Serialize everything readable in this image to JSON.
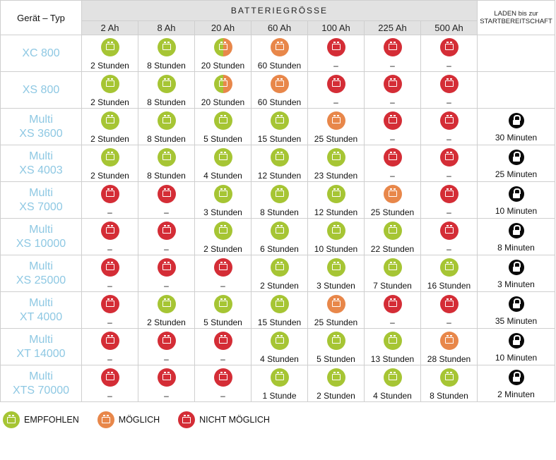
{
  "header": {
    "corner": "Gerät – Typ",
    "battery_size": "BATTERIEGRÖSSE",
    "ready": "LADEN bis zur STARTBEREITSCHAFT",
    "capacities": [
      "2 Ah",
      "8 Ah",
      "20 Ah",
      "60 Ah",
      "100 Ah",
      "225 Ah",
      "500 Ah"
    ]
  },
  "rows": [
    {
      "line1": "XC 800",
      "line2": "",
      "cells": [
        {
          "s": "ok",
          "t": "2 Stunden"
        },
        {
          "s": "ok",
          "t": "8 Stunden"
        },
        {
          "s": "split",
          "t": "20 Stunden"
        },
        {
          "s": "poss",
          "t": "60 Stunden"
        },
        {
          "s": "no",
          "t": "–"
        },
        {
          "s": "no",
          "t": "–"
        },
        {
          "s": "no",
          "t": "–"
        }
      ],
      "ready": ""
    },
    {
      "line1": "XS 800",
      "line2": "",
      "cells": [
        {
          "s": "ok",
          "t": "2 Stunden"
        },
        {
          "s": "ok",
          "t": "8 Stunden"
        },
        {
          "s": "split",
          "t": "20 Stunden"
        },
        {
          "s": "poss",
          "t": "60 Stunden"
        },
        {
          "s": "no",
          "t": "–"
        },
        {
          "s": "no",
          "t": "–"
        },
        {
          "s": "no",
          "t": "–"
        }
      ],
      "ready": ""
    },
    {
      "line1": "Multi",
      "line2": "XS 3600",
      "cells": [
        {
          "s": "ok",
          "t": "2 Stunden"
        },
        {
          "s": "ok",
          "t": "8 Stunden"
        },
        {
          "s": "ok",
          "t": "5 Stunden"
        },
        {
          "s": "ok",
          "t": "15 Stunden"
        },
        {
          "s": "poss",
          "t": "25 Stunden"
        },
        {
          "s": "no",
          "t": "–"
        },
        {
          "s": "no",
          "t": "–"
        }
      ],
      "ready": "30 Minuten"
    },
    {
      "line1": "Multi",
      "line2": "XS 4003",
      "cells": [
        {
          "s": "ok",
          "t": "2 Stunden"
        },
        {
          "s": "ok",
          "t": "8 Stunden"
        },
        {
          "s": "ok",
          "t": "4 Stunden"
        },
        {
          "s": "ok",
          "t": "12 Stunden"
        },
        {
          "s": "ok",
          "t": "23 Stunden"
        },
        {
          "s": "no",
          "t": "–"
        },
        {
          "s": "no",
          "t": "–"
        }
      ],
      "ready": "25 Minuten"
    },
    {
      "line1": "Multi",
      "line2": "XS 7000",
      "cells": [
        {
          "s": "no",
          "t": "–"
        },
        {
          "s": "no",
          "t": "–"
        },
        {
          "s": "ok",
          "t": "3 Stunden"
        },
        {
          "s": "ok",
          "t": "8 Stunden"
        },
        {
          "s": "ok",
          "t": "12 Stunden"
        },
        {
          "s": "poss",
          "t": "25 Stunden"
        },
        {
          "s": "no",
          "t": "–"
        }
      ],
      "ready": "10 Minuten"
    },
    {
      "line1": "Multi",
      "line2": "XS 10000",
      "cells": [
        {
          "s": "no",
          "t": "–"
        },
        {
          "s": "no",
          "t": "–"
        },
        {
          "s": "ok",
          "t": "2 Stunden"
        },
        {
          "s": "ok",
          "t": "6 Stunden"
        },
        {
          "s": "ok",
          "t": "10 Stunden"
        },
        {
          "s": "ok",
          "t": "22 Stunden"
        },
        {
          "s": "no",
          "t": "–"
        }
      ],
      "ready": "8 Minuten"
    },
    {
      "line1": "Multi",
      "line2": "XS 25000",
      "cells": [
        {
          "s": "no",
          "t": "–"
        },
        {
          "s": "no",
          "t": "–"
        },
        {
          "s": "no",
          "t": "–"
        },
        {
          "s": "ok",
          "t": "2 Stunden"
        },
        {
          "s": "ok",
          "t": "3 Stunden"
        },
        {
          "s": "ok",
          "t": "7 Stunden"
        },
        {
          "s": "ok",
          "t": "16 Stunden"
        }
      ],
      "ready": "3 Minuten"
    },
    {
      "line1": "Multi",
      "line2": "XT 4000",
      "cells": [
        {
          "s": "no",
          "t": "–"
        },
        {
          "s": "ok",
          "t": "2 Stunden"
        },
        {
          "s": "ok",
          "t": "5 Stunden"
        },
        {
          "s": "ok",
          "t": "15 Stunden"
        },
        {
          "s": "poss",
          "t": "25 Stunden"
        },
        {
          "s": "no",
          "t": "–"
        },
        {
          "s": "no",
          "t": "–"
        }
      ],
      "ready": "35 Minuten"
    },
    {
      "line1": "Multi",
      "line2": "XT 14000",
      "cells": [
        {
          "s": "no",
          "t": "–"
        },
        {
          "s": "no",
          "t": "–"
        },
        {
          "s": "no",
          "t": "–"
        },
        {
          "s": "ok",
          "t": "4 Stunden"
        },
        {
          "s": "ok",
          "t": "5 Stunden"
        },
        {
          "s": "ok",
          "t": "13 Stunden"
        },
        {
          "s": "poss",
          "t": "28 Stunden"
        }
      ],
      "ready": "10 Minuten"
    },
    {
      "line1": "Multi",
      "line2": "XTS 70000",
      "cells": [
        {
          "s": "no",
          "t": "–"
        },
        {
          "s": "no",
          "t": "–"
        },
        {
          "s": "no",
          "t": "–"
        },
        {
          "s": "ok",
          "t": "1 Stunde"
        },
        {
          "s": "ok",
          "t": "2 Stunden"
        },
        {
          "s": "ok",
          "t": "4 Stunden"
        },
        {
          "s": "ok",
          "t": "8 Stunden"
        }
      ],
      "ready": "2 Minuten"
    }
  ],
  "legend": [
    {
      "status": "ok",
      "label": "EMPFOHLEN",
      "color": "#a6c534"
    },
    {
      "status": "poss",
      "label": "MÖGLICH",
      "color": "#e8874a"
    },
    {
      "status": "no",
      "label": "NICHT MÖGLICH",
      "color": "#d42d36"
    }
  ],
  "icons": {
    "recommended": "battery-ok-icon",
    "possible": "battery-possible-icon",
    "not_possible": "battery-not-possible-icon",
    "ready": "lock-icon"
  }
}
